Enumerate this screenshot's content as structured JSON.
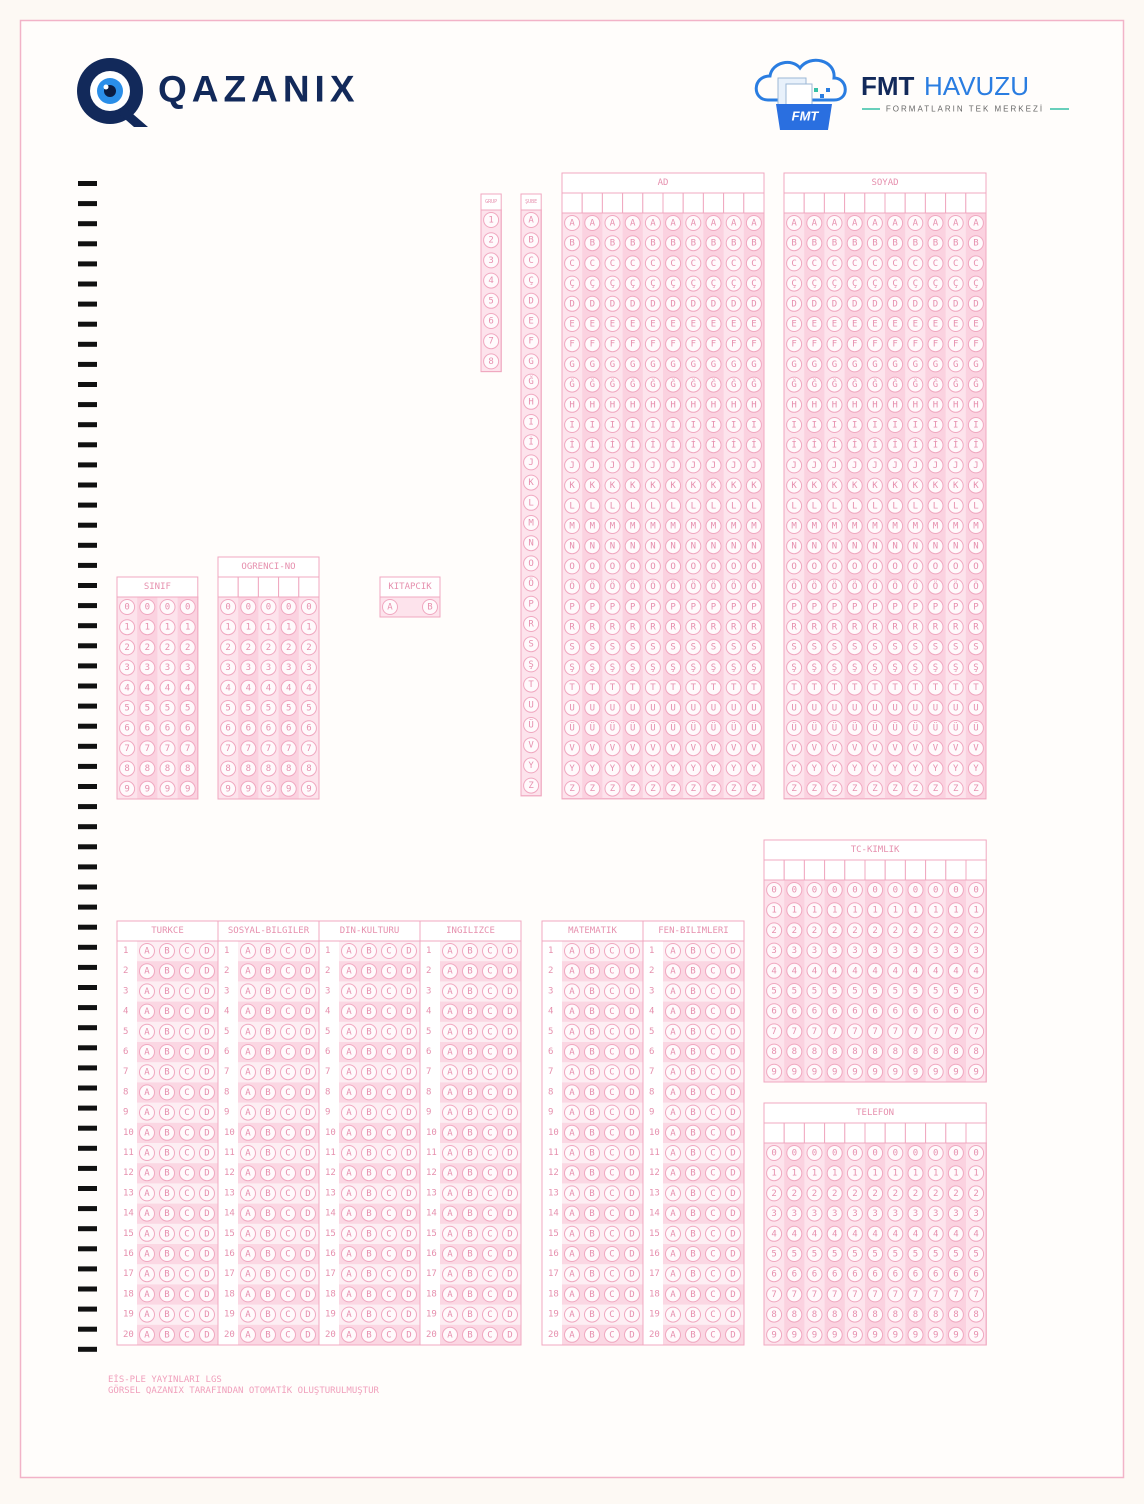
{
  "header": {
    "logo_text": "QAZANIX",
    "fmt_brand": "FMT",
    "fmt_pool": "HAVUZU",
    "fmt_tagline": "FORMATLARIN TEK MERKEZİ",
    "fmt_icon_label": "FMT"
  },
  "fields": {
    "group": "GRUP",
    "branch": "ŞUBE",
    "name": "AD",
    "surname": "SOYAD",
    "class": "SINIF",
    "student_no": "OGRENCI-NO",
    "booklet": "KITAPCIK",
    "tc_id": "TC-KIMLIK",
    "phone": "TELEFON"
  },
  "alphabet": [
    "A",
    "B",
    "C",
    "Ç",
    "D",
    "E",
    "F",
    "G",
    "Ğ",
    "H",
    "I",
    "İ",
    "J",
    "K",
    "L",
    "M",
    "N",
    "O",
    "Ö",
    "P",
    "R",
    "S",
    "Ş",
    "T",
    "U",
    "Ü",
    "V",
    "Y",
    "Z"
  ],
  "digits": [
    "0",
    "1",
    "2",
    "3",
    "4",
    "5",
    "6",
    "7",
    "8",
    "9"
  ],
  "booklets": [
    "A",
    "B"
  ],
  "options": [
    "A",
    "B",
    "C",
    "D"
  ],
  "question_numbers": [
    1,
    2,
    3,
    4,
    5,
    6,
    7,
    8,
    9,
    10,
    11,
    12,
    13,
    14,
    15,
    16,
    17,
    18,
    19,
    20
  ],
  "answer_sections": [
    "TURKCE",
    "SOSYAL-BILGILER",
    "DIN-KULTURU",
    "INGILIZCE",
    "MATEMATIK",
    "FEN-BILIMLERI"
  ],
  "footer": {
    "line1": "EİS-PLE YAYINLARI LGS",
    "line2": "GÖRSEL QAZANIX TARAFINDAN OTOMATİK OLUŞTURULMUŞTUR"
  }
}
